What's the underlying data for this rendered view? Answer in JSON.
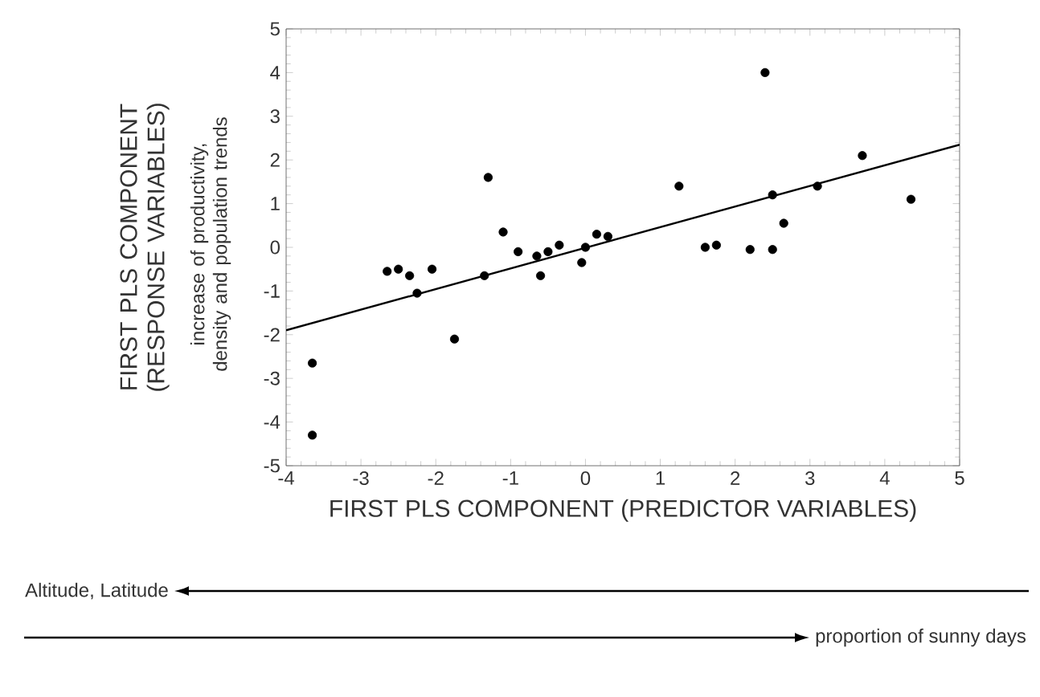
{
  "chart_data": {
    "type": "scatter",
    "xlabel": "FIRST PLS COMPONENT (PREDICTOR VARIABLES)",
    "ylabel": "FIRST PLS COMPONENT (RESPONSE VARIABLES)",
    "annotations": [
      "increase of productivity, density and population trends",
      "Altitude, Latitude",
      "proportion of sunny days"
    ],
    "xlim": [
      -4,
      5
    ],
    "ylim": [
      -5,
      5
    ],
    "xticks": [
      -4,
      -3,
      -2,
      -1,
      0,
      1,
      2,
      3,
      4,
      5
    ],
    "yticks": [
      -5,
      -4,
      -3,
      -2,
      -1,
      0,
      1,
      2,
      3,
      4,
      5
    ],
    "grid": false,
    "series": [
      {
        "type": "scatter",
        "color": "#000000",
        "marker": "circle",
        "x": [
          -3.65,
          -3.65,
          -2.65,
          -2.5,
          -2.35,
          -2.25,
          -2.05,
          -1.75,
          -1.35,
          -1.3,
          -1.1,
          -0.9,
          -0.65,
          -0.6,
          -0.5,
          -0.35,
          -0.05,
          0.0,
          0.15,
          0.3,
          1.25,
          1.6,
          1.75,
          2.2,
          2.4,
          2.5,
          2.5,
          2.65,
          3.1,
          3.7,
          4.35
        ],
        "values": [
          -2.65,
          -4.3,
          -0.55,
          -0.5,
          -0.65,
          -1.05,
          -0.5,
          -2.1,
          -0.65,
          1.6,
          0.35,
          -0.1,
          -0.2,
          -0.65,
          -0.1,
          0.05,
          -0.35,
          0.0,
          0.3,
          0.25,
          1.4,
          0.0,
          0.05,
          -0.05,
          4.0,
          1.2,
          -0.05,
          0.55,
          1.4,
          2.1,
          1.1
        ]
      },
      {
        "type": "line",
        "color": "#000000",
        "x": [
          -4,
          5
        ],
        "values": [
          -1.9,
          2.35
        ]
      }
    ]
  }
}
